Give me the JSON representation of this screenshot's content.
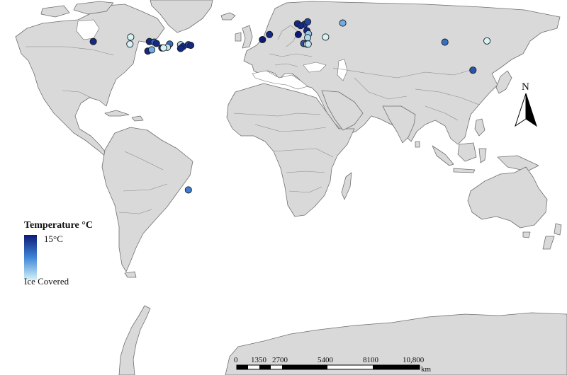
{
  "map": {
    "background": "#ffffff",
    "land_color": "#d9d9d9",
    "border_color": "#6f6f6f"
  },
  "legend": {
    "title": "Temperature °C",
    "max_label": "15°C",
    "min_label": "Ice Covered",
    "color_max": "#0d1a78",
    "color_mid": "#3f86d8",
    "color_min": "#d6f4f8"
  },
  "north_arrow": {
    "label": "N",
    "icon": "north-arrow-icon"
  },
  "scale_bar": {
    "unit": "km",
    "ticks": [
      "0",
      "1350",
      "2700",
      "5400",
      "8100",
      "10,800"
    ]
  },
  "sites": [
    {
      "lat": 53.5,
      "lon": -122.0,
      "temp_c": 14
    },
    {
      "lat": 57.0,
      "lon": -98.0,
      "temp_c": 0
    },
    {
      "lat": 51.5,
      "lon": -98.5,
      "temp_c": 0
    },
    {
      "lat": 53.5,
      "lon": -86.0,
      "temp_c": 14
    },
    {
      "lat": 53.0,
      "lon": -83.0,
      "temp_c": 10
    },
    {
      "lat": 52.0,
      "lon": -81.5,
      "temp_c": 14
    },
    {
      "lat": 51.5,
      "lon": -73.0,
      "temp_c": 9
    },
    {
      "lat": 51.0,
      "lon": -66.0,
      "temp_c": 2
    },
    {
      "lat": 51.0,
      "lon": -61.0,
      "temp_c": 12
    },
    {
      "lat": 49.5,
      "lon": -64.5,
      "temp_c": 14
    },
    {
      "lat": 50.5,
      "lon": -59.5,
      "temp_c": 14
    },
    {
      "lat": 49.0,
      "lon": -74.5,
      "temp_c": 1
    },
    {
      "lat": 46.0,
      "lon": -87.0,
      "temp_c": 14
    },
    {
      "lat": 47.0,
      "lon": -84.5,
      "temp_c": 5
    },
    {
      "lat": 48.5,
      "lon": -78.0,
      "temp_c": 14
    },
    {
      "lat": 48.5,
      "lon": -77.0,
      "temp_c": 0
    },
    {
      "lat": 48.0,
      "lon": -66.0,
      "temp_c": 14
    },
    {
      "lat": 59.0,
      "lon": -9.0,
      "temp_c": 14
    },
    {
      "lat": 55.0,
      "lon": -13.5,
      "temp_c": 15
    },
    {
      "lat": 67.5,
      "lon": 9.0,
      "temp_c": 14
    },
    {
      "lat": 67.0,
      "lon": 13.5,
      "temp_c": 13
    },
    {
      "lat": 69.0,
      "lon": 15.5,
      "temp_c": 12
    },
    {
      "lat": 66.0,
      "lon": 11.0,
      "temp_c": 14
    },
    {
      "lat": 62.0,
      "lon": 15.0,
      "temp_c": 14
    },
    {
      "lat": 59.0,
      "lon": 9.5,
      "temp_c": 15
    },
    {
      "lat": 59.5,
      "lon": 16.0,
      "temp_c": 3
    },
    {
      "lat": 56.5,
      "lon": 15.5,
      "temp_c": 2
    },
    {
      "lat": 52.0,
      "lon": 13.0,
      "temp_c": 11
    },
    {
      "lat": 51.5,
      "lon": 15.0,
      "temp_c": 0
    },
    {
      "lat": 51.5,
      "lon": 15.8,
      "temp_c": 1
    },
    {
      "lat": 57.0,
      "lon": 27.0,
      "temp_c": 0
    },
    {
      "lat": 68.0,
      "lon": 38.0,
      "temp_c": 5
    },
    {
      "lat": 53.0,
      "lon": 103.5,
      "temp_c": 9
    },
    {
      "lat": 54.0,
      "lon": 130.5,
      "temp_c": 0
    },
    {
      "lat": 31.0,
      "lon": 121.5,
      "temp_c": 11
    },
    {
      "lat": -63.0,
      "lon": -61.0,
      "temp_c": 8
    }
  ]
}
